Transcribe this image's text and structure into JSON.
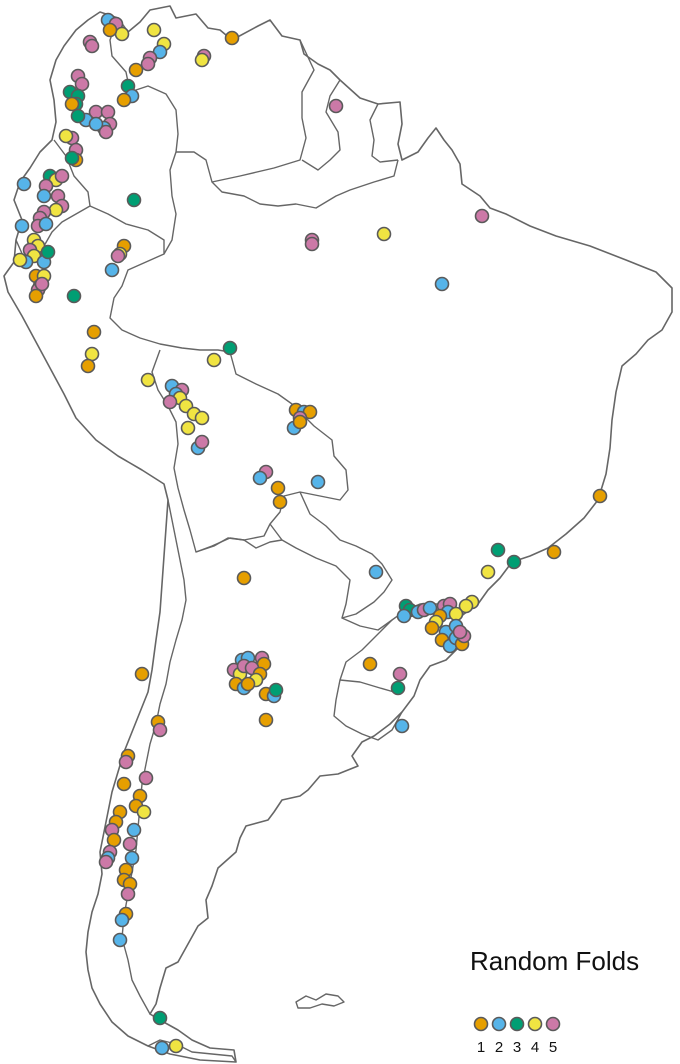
{
  "legend": {
    "title": "Random Folds",
    "items": [
      {
        "label": "1",
        "color": "#E69F00"
      },
      {
        "label": "2",
        "color": "#56B4E9"
      },
      {
        "label": "3",
        "color": "#009E73"
      },
      {
        "label": "4",
        "color": "#F0E442"
      },
      {
        "label": "5",
        "color": "#CC79A7"
      }
    ]
  },
  "stroke_color": "#666666"
}
